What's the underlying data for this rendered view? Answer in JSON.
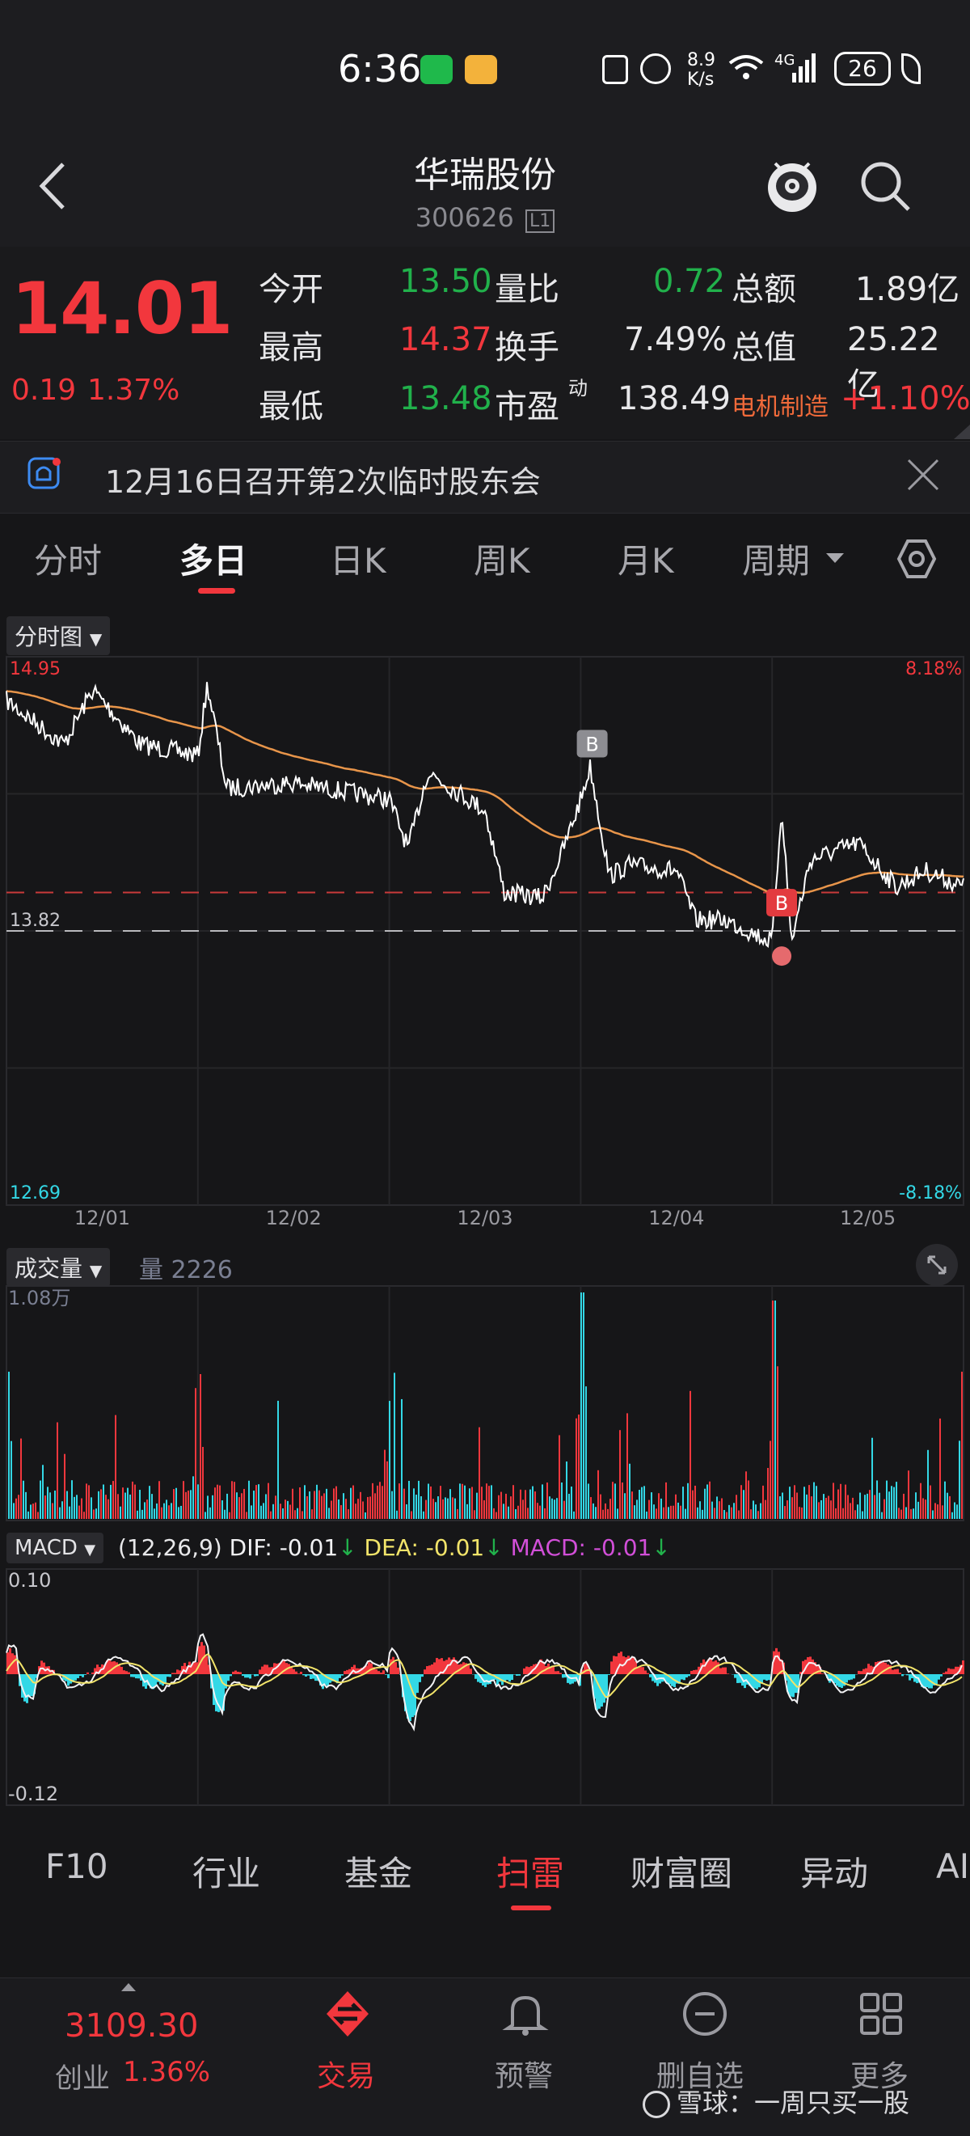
{
  "status_bar": {
    "time": "6:36",
    "net_speed_top": "8.9",
    "net_speed_bottom": "K/s",
    "battery": "26"
  },
  "nav": {
    "back_icon": "chevron-left-icon",
    "title": "华瑞股份",
    "code": "300626",
    "level_badge": "L1"
  },
  "quote": {
    "price": "14.01",
    "change": "0.19",
    "change_pct": "1.37%",
    "rows": [
      {
        "k1": "今开",
        "v1": "13.50",
        "k2": "量比",
        "v2": "0.72",
        "k3": "总额",
        "v3": "1.89亿"
      },
      {
        "k1": "最高",
        "v1": "14.37",
        "k2": "换手",
        "v2": "7.49%",
        "k3": "总值",
        "v3": "25.22亿"
      },
      {
        "k1": "最低",
        "v1": "13.48",
        "k2": "市盈",
        "k2_sup": "动",
        "v2": "138.49",
        "k3": "电机制造",
        "v3": "+1.10%"
      }
    ]
  },
  "notice": {
    "text": "12月16日召开第2次临时股东会"
  },
  "tabs": {
    "items": [
      "分时",
      "多日",
      "日K",
      "周K",
      "月K",
      "周期"
    ],
    "active": "多日"
  },
  "price_chart": {
    "selector": "分时图",
    "high_label": "14.95",
    "low_label": "12.69",
    "ref_label": "13.82",
    "high_pct": "8.18%",
    "low_pct": "-8.18%",
    "x_ticks": [
      "12/01",
      "12/02",
      "12/03",
      "12/04",
      "12/05"
    ],
    "buy_marker": "B",
    "colors": {
      "price": "#ffffff",
      "avg": "#e8954a",
      "up": "#f2373d",
      "down": "#33d8e6"
    }
  },
  "volume_chart": {
    "selector": "成交量",
    "label": "量 2226",
    "max_label": "1.08万"
  },
  "macd_chart": {
    "selector": "MACD",
    "params": "(12,26,9)",
    "dif": "DIF: -0.01",
    "dea": "DEA: -0.01",
    "macd": "MACD: -0.01",
    "arrow": "↓",
    "top_label": "0.10",
    "bottom_label": "-0.12"
  },
  "bottom_tabs": {
    "items": [
      "F10",
      "行业",
      "基金",
      "扫雷",
      "财富圈",
      "异动",
      "AI"
    ],
    "active": "扫雷"
  },
  "dock": {
    "index_value": "3109.30",
    "index_name": "创业",
    "index_pct": "1.36%",
    "items": [
      {
        "label": "交易",
        "icon": "trade-icon"
      },
      {
        "label": "预警",
        "icon": "bell-icon"
      },
      {
        "label": "删自选",
        "icon": "minus-circle-icon"
      },
      {
        "label": "更多",
        "icon": "grid-icon"
      }
    ],
    "watermark": "雪球：一周只买一股"
  }
}
